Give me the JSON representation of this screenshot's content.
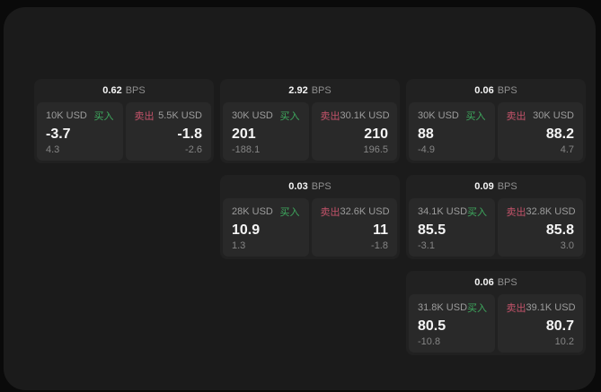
{
  "labels": {
    "bps_unit": "BPS",
    "buy": "买入",
    "sell": "卖出"
  },
  "colors": {
    "window_bg": "#1b1b1b",
    "outer_bg": "#0a0a0a",
    "card_bg": "#212121",
    "tile_bg": "#292929",
    "buy_green": "#3ea95e",
    "sell_red": "#c4536a",
    "value_white": "#f5f5f5",
    "label_gray": "#9c9c9c"
  },
  "cards": [
    {
      "row": 1,
      "col": 1,
      "bps": "0.62",
      "buy": {
        "amount": "10K USD",
        "value": "-3.7",
        "secondary": "4.3"
      },
      "sell": {
        "amount": "5.5K USD",
        "value": "-1.8",
        "secondary": "-2.6"
      }
    },
    {
      "row": 1,
      "col": 2,
      "bps": "2.92",
      "buy": {
        "amount": "30K USD",
        "value": "201",
        "secondary": "-188.1"
      },
      "sell": {
        "amount": "30.1K USD",
        "value": "210",
        "secondary": "196.5"
      }
    },
    {
      "row": 1,
      "col": 3,
      "bps": "0.06",
      "buy": {
        "amount": "30K USD",
        "value": "88",
        "secondary": "-4.9"
      },
      "sell": {
        "amount": "30K USD",
        "value": "88.2",
        "secondary": "4.7"
      }
    },
    {
      "row": 2,
      "col": 2,
      "bps": "0.03",
      "buy": {
        "amount": "28K USD",
        "value": "10.9",
        "secondary": "1.3"
      },
      "sell": {
        "amount": "32.6K USD",
        "value": "11",
        "secondary": "-1.8"
      }
    },
    {
      "row": 2,
      "col": 3,
      "bps": "0.09",
      "buy": {
        "amount": "34.1K USD",
        "value": "85.5",
        "secondary": "-3.1"
      },
      "sell": {
        "amount": "32.8K USD",
        "value": "85.8",
        "secondary": "3.0"
      }
    },
    {
      "row": 3,
      "col": 3,
      "bps": "0.06",
      "buy": {
        "amount": "31.8K USD",
        "value": "80.5",
        "secondary": "-10.8"
      },
      "sell": {
        "amount": "39.1K USD",
        "value": "80.7",
        "secondary": "10.2"
      }
    }
  ]
}
